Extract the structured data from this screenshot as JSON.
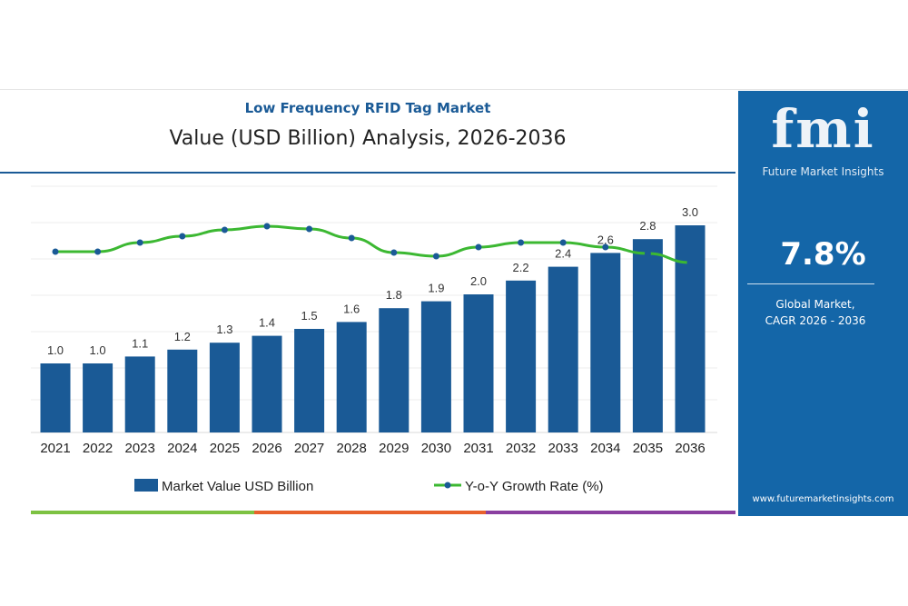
{
  "chart_data": {
    "type": "bar",
    "title": "Low Frequency RFID Tag Market",
    "subtitle": "Value (USD Billion) Analysis, 2026-2036",
    "categories": [
      "2021",
      "2022",
      "2023",
      "2024",
      "2025",
      "2026",
      "2027",
      "2028",
      "2029",
      "2030",
      "2031",
      "2032",
      "2033",
      "2034",
      "2035",
      "2036"
    ],
    "series": [
      {
        "name": "Market Value USD Billion",
        "type": "bar",
        "color": "#1a5a96",
        "values": [
          1.0,
          1.0,
          1.1,
          1.2,
          1.3,
          1.4,
          1.5,
          1.6,
          1.8,
          1.9,
          2.0,
          2.2,
          2.4,
          2.6,
          2.8,
          3.0
        ],
        "labels": [
          "1.0",
          "1.0",
          "1.1",
          "1.2",
          "1.3",
          "1.4",
          "1.5",
          "1.6",
          "1.8",
          "1.9",
          "2.0",
          "2.2",
          "2.4",
          "2.6",
          "2.8",
          "3.0"
        ]
      },
      {
        "name": "Y-o-Y Growth Rate (%)",
        "type": "line",
        "color": "#3cb832",
        "marker_color": "#1a5a96",
        "values": [
          7.0,
          7.0,
          7.5,
          7.85,
          8.2,
          8.4,
          8.25,
          7.75,
          6.95,
          6.75,
          7.25,
          7.5,
          7.5,
          7.25,
          6.9,
          6.4
        ]
      }
    ],
    "ylim": [
      0,
      3.2
    ],
    "grid": true,
    "legend": "bottom"
  },
  "panel": {
    "logo": "fmi",
    "logo_sub": "Future Market Insights",
    "cagr": "7.8%",
    "cagr_label_1": "Global Market,",
    "cagr_label_2": "CAGR 2026 - 2036",
    "url": "www.futuremarketinsights.com",
    "color": "#1466a8"
  },
  "strip_colors": [
    "#7dc242",
    "#e8612c",
    "#8a3fa0"
  ]
}
